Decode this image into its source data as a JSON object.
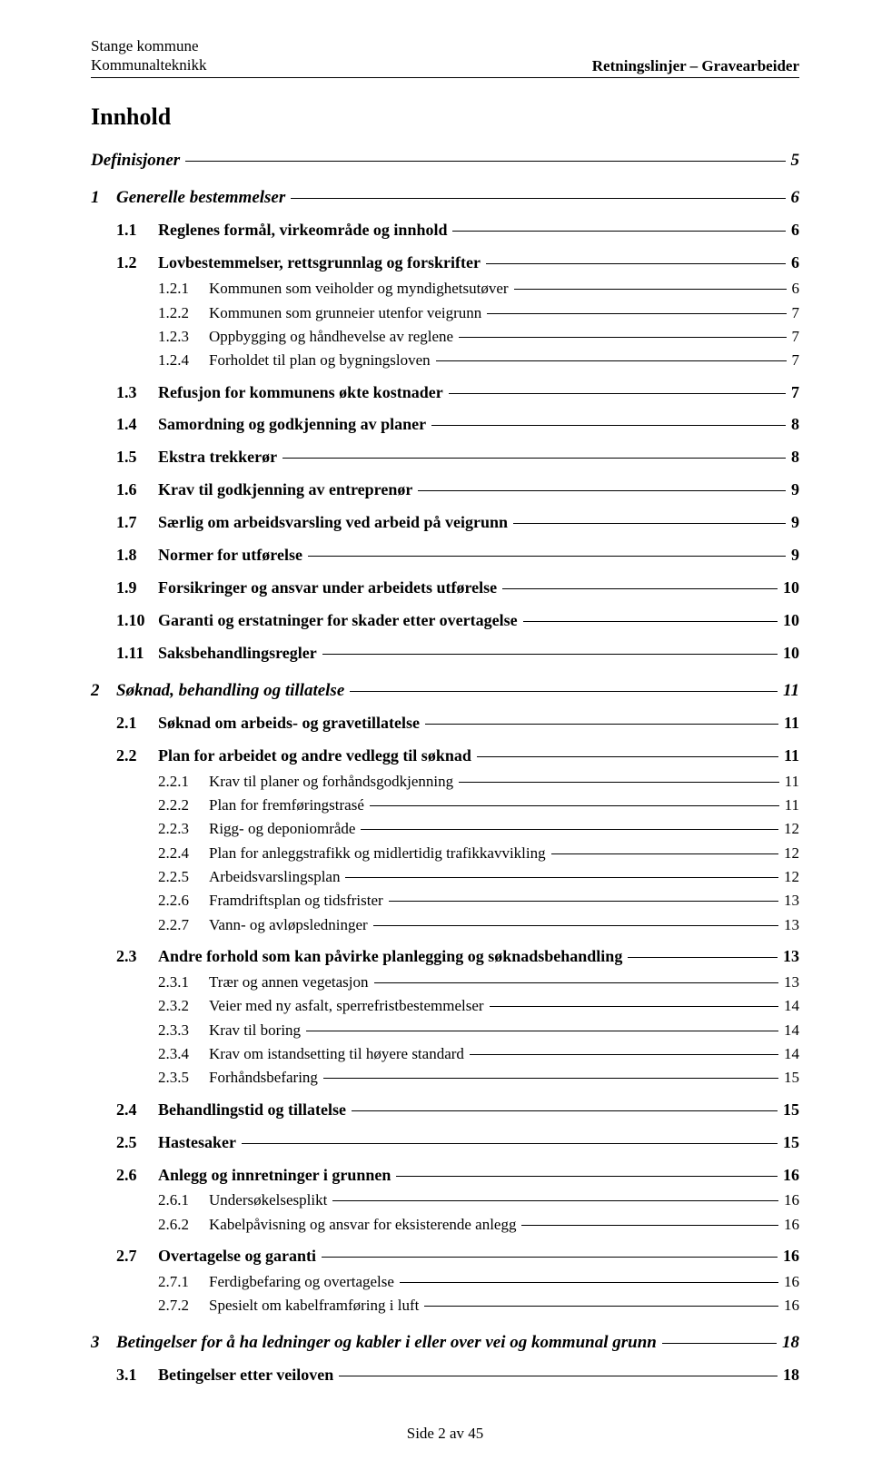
{
  "header": {
    "org": "Stange kommune",
    "dept": "Kommunalteknikk",
    "doc": "Retningslinjer – Gravearbeider"
  },
  "title": "Innhold",
  "toc": [
    {
      "level": 1,
      "num": "",
      "text": "Definisjoner",
      "page": "5"
    },
    {
      "level": 1,
      "num": "1",
      "text": "Generelle bestemmelser",
      "page": "6"
    },
    {
      "level": 2,
      "num": "1.1",
      "text": "Reglenes formål, virkeområde og innhold",
      "page": "6"
    },
    {
      "level": 2,
      "num": "1.2",
      "text": "Lovbestemmelser, rettsgrunnlag og forskrifter",
      "page": "6"
    },
    {
      "level": 3,
      "num": "1.2.1",
      "text": "Kommunen som veiholder og myndighetsutøver",
      "page": "6"
    },
    {
      "level": 3,
      "num": "1.2.2",
      "text": "Kommunen som grunneier utenfor veigrunn",
      "page": "7"
    },
    {
      "level": 3,
      "num": "1.2.3",
      "text": "Oppbygging og håndhevelse av reglene",
      "page": "7"
    },
    {
      "level": 3,
      "num": "1.2.4",
      "text": "Forholdet til plan og bygningsloven",
      "page": "7"
    },
    {
      "level": 2,
      "num": "1.3",
      "text": "Refusjon for kommunens økte kostnader",
      "page": "7"
    },
    {
      "level": 2,
      "num": "1.4",
      "text": "Samordning og godkjenning av planer",
      "page": "8"
    },
    {
      "level": 2,
      "num": "1.5",
      "text": "Ekstra trekkerør",
      "page": "8"
    },
    {
      "level": 2,
      "num": "1.6",
      "text": "Krav til godkjenning av entreprenør",
      "page": "9"
    },
    {
      "level": 2,
      "num": "1.7",
      "text": "Særlig om arbeidsvarsling ved arbeid på veigrunn",
      "page": "9"
    },
    {
      "level": 2,
      "num": "1.8",
      "text": "Normer for utførelse",
      "page": "9"
    },
    {
      "level": 2,
      "num": "1.9",
      "text": "Forsikringer og ansvar under arbeidets utførelse",
      "page": "10"
    },
    {
      "level": 2,
      "num": "1.10",
      "text": "Garanti og erstatninger for skader etter overtagelse",
      "page": "10"
    },
    {
      "level": 2,
      "num": "1.11",
      "text": "Saksbehandlingsregler",
      "page": "10"
    },
    {
      "level": 1,
      "num": "2",
      "text": "Søknad, behandling og tillatelse",
      "page": "11"
    },
    {
      "level": 2,
      "num": "2.1",
      "text": "Søknad om arbeids- og gravetillatelse",
      "page": "11"
    },
    {
      "level": 2,
      "num": "2.2",
      "text": "Plan for arbeidet og andre vedlegg til søknad",
      "page": "11"
    },
    {
      "level": 3,
      "num": "2.2.1",
      "text": "Krav til planer og forhåndsgodkjenning",
      "page": "11"
    },
    {
      "level": 3,
      "num": "2.2.2",
      "text": "Plan for fremføringstrasé",
      "page": "11"
    },
    {
      "level": 3,
      "num": "2.2.3",
      "text": "Rigg- og deponiområde",
      "page": "12"
    },
    {
      "level": 3,
      "num": "2.2.4",
      "text": "Plan for anleggstrafikk og midlertidig trafikkavvikling",
      "page": "12"
    },
    {
      "level": 3,
      "num": "2.2.5",
      "text": "Arbeidsvarslingsplan",
      "page": "12"
    },
    {
      "level": 3,
      "num": "2.2.6",
      "text": "Framdriftsplan og tidsfrister",
      "page": "13"
    },
    {
      "level": 3,
      "num": "2.2.7",
      "text": "Vann- og avløpsledninger",
      "page": "13"
    },
    {
      "level": 2,
      "num": "2.3",
      "text": "Andre forhold som kan påvirke planlegging og søknadsbehandling",
      "page": "13"
    },
    {
      "level": 3,
      "num": "2.3.1",
      "text": "Trær og annen vegetasjon",
      "page": "13"
    },
    {
      "level": 3,
      "num": "2.3.2",
      "text": "Veier med ny asfalt, sperrefristbestemmelser",
      "page": "14"
    },
    {
      "level": 3,
      "num": "2.3.3",
      "text": "Krav til boring",
      "page": "14"
    },
    {
      "level": 3,
      "num": "2.3.4",
      "text": "Krav om istandsetting til høyere standard",
      "page": "14"
    },
    {
      "level": 3,
      "num": "2.3.5",
      "text": "Forhåndsbefaring",
      "page": "15"
    },
    {
      "level": 2,
      "num": "2.4",
      "text": "Behandlingstid og tillatelse",
      "page": "15"
    },
    {
      "level": 2,
      "num": "2.5",
      "text": "Hastesaker",
      "page": "15"
    },
    {
      "level": 2,
      "num": "2.6",
      "text": "Anlegg og innretninger i grunnen",
      "page": "16"
    },
    {
      "level": 3,
      "num": "2.6.1",
      "text": "Undersøkelsesplikt",
      "page": "16"
    },
    {
      "level": 3,
      "num": "2.6.2",
      "text": "Kabelpåvisning og ansvar for eksisterende anlegg",
      "page": "16"
    },
    {
      "level": 2,
      "num": "2.7",
      "text": "Overtagelse og garanti",
      "page": "16"
    },
    {
      "level": 3,
      "num": "2.7.1",
      "text": "Ferdigbefaring og overtagelse",
      "page": "16"
    },
    {
      "level": 3,
      "num": "2.7.2",
      "text": "Spesielt om kabelframføring i luft",
      "page": "16"
    },
    {
      "level": 1,
      "num": "3",
      "text": "Betingelser for å ha ledninger og kabler i eller over vei og kommunal grunn",
      "page": "18"
    },
    {
      "level": 2,
      "num": "3.1",
      "text": "Betingelser etter veiloven",
      "page": "18"
    }
  ],
  "footer": "Side 2 av 45"
}
